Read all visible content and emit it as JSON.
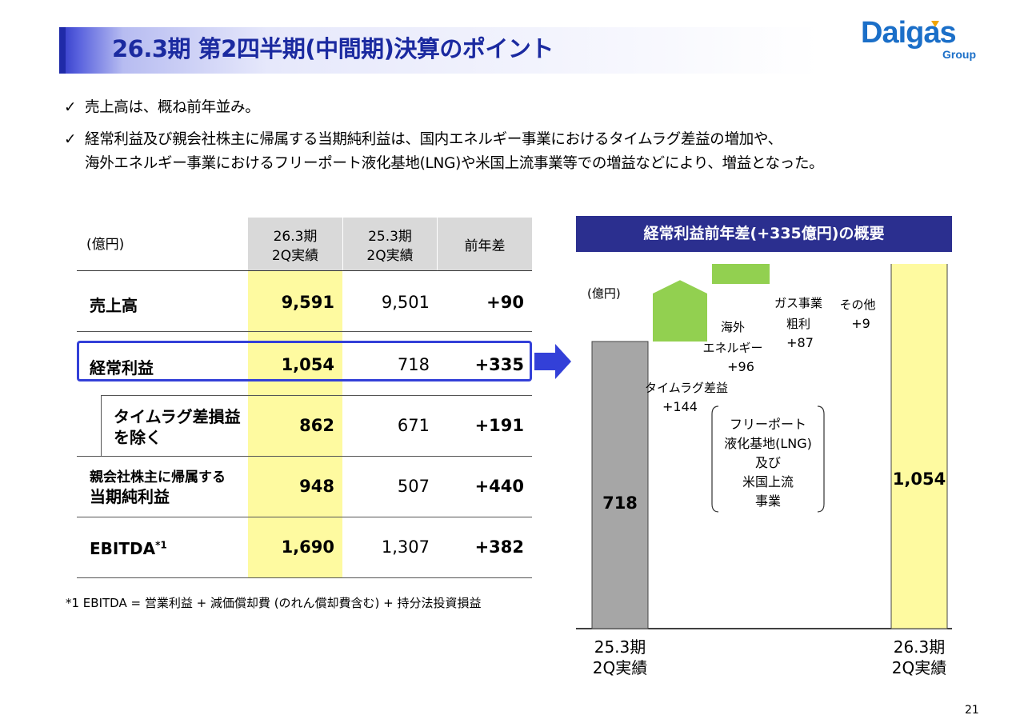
{
  "header": {
    "title": "26.3期 第2四半期(中間期)決算のポイント",
    "logo_main": "Daigas",
    "logo_sub": "Group"
  },
  "bullets": [
    "売上高は、概ね前年並み。",
    "経常利益及び親会社株主に帰属する当期純利益は、国内エネルギー事業におけるタイムラグ差益の増加や、",
    "海外エネルギー事業におけるフリーポート液化基地(LNG)や米国上流事業等での増益などにより、増益となった。"
  ],
  "table": {
    "unit": "(億円)",
    "col1_line1": "26.3期",
    "col1_line2": "2Q実績",
    "col2_line1": "25.3期",
    "col2_line2": "2Q実績",
    "col3": "前年差",
    "rows": [
      {
        "label": "売上高",
        "current": "9,591",
        "previous": "9,501",
        "diff": "+90"
      },
      {
        "label": "経常利益",
        "current": "1,054",
        "previous": "718",
        "diff": "+335"
      },
      {
        "label_line1": "タイムラグ差損益",
        "label_line2": "を除く",
        "current": "862",
        "previous": "671",
        "diff": "+191"
      },
      {
        "label_line1": "親会社株主に帰属する",
        "label_line2": "当期純利益",
        "current": "948",
        "previous": "507",
        "diff": "+440"
      },
      {
        "label": "EBITDA",
        "label_sup": "*1",
        "current": "1,690",
        "previous": "1,307",
        "diff": "+382"
      }
    ],
    "footnote": "*1 EBITDA =  営業利益 + 減価償却費 (のれん償却費含む) + 持分法投資損益"
  },
  "chart_data": {
    "type": "waterfall",
    "title": "経常利益前年差(+335億円)の概要",
    "unit": "(億円)",
    "start": {
      "label_line1": "25.3期",
      "label_line2": "2Q実績",
      "value": 718,
      "display": "718"
    },
    "steps": [
      {
        "name_lines": [
          "タイムラグ差益"
        ],
        "value": 144,
        "display": "+144"
      },
      {
        "name_lines": [
          "海外",
          "エネルギー"
        ],
        "value": 96,
        "display": "+96"
      },
      {
        "name_lines": [
          "ガス事業",
          "粗利"
        ],
        "value": 87,
        "display": "+87"
      },
      {
        "name_lines": [
          "その他"
        ],
        "value": 9,
        "display": "+9"
      }
    ],
    "end": {
      "label_line1": "26.3期",
      "label_line2": "2Q実績",
      "value": 1054,
      "display": "1,054"
    },
    "annotation": [
      "フリーポート",
      "液化基地(LNG)",
      "及び",
      "米国上流",
      "事業"
    ],
    "colors": {
      "start": "#a6a6a6",
      "step": "#92d050",
      "end": "#fefaa0"
    }
  },
  "page_number": "21"
}
